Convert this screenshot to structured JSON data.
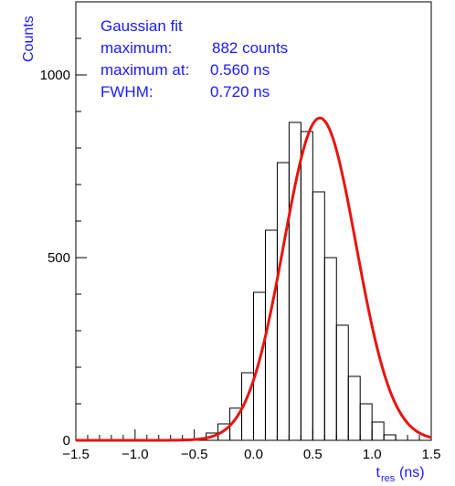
{
  "chart_data": {
    "type": "histogram",
    "xlabel_main": "t",
    "xlabel_sub": "res",
    "xlabel_unit": "(ns)",
    "ylabel": "Counts",
    "xlim": [
      -1.5,
      1.5
    ],
    "ylim": [
      0,
      1200
    ],
    "x_ticks": [
      -1.5,
      -1.0,
      -0.5,
      0.0,
      0.5,
      1.0,
      1.5
    ],
    "x_tick_labels": [
      "−1.5",
      "−1.0",
      "−0.5",
      "0.0",
      "0.5",
      "1.0",
      "1.5"
    ],
    "y_ticks": [
      0,
      500,
      1000
    ],
    "y_tick_labels": [
      "0",
      "500",
      "1000"
    ],
    "bin_width": 0.1,
    "bins": [
      {
        "x0": -1.5,
        "x1": -1.4,
        "count": 0
      },
      {
        "x0": -1.4,
        "x1": -1.3,
        "count": 0
      },
      {
        "x0": -1.3,
        "x1": -1.2,
        "count": 0
      },
      {
        "x0": -1.2,
        "x1": -1.1,
        "count": 0
      },
      {
        "x0": -1.1,
        "x1": -1.0,
        "count": 0
      },
      {
        "x0": -1.0,
        "x1": -0.9,
        "count": 0
      },
      {
        "x0": -0.9,
        "x1": -0.8,
        "count": 0
      },
      {
        "x0": -0.8,
        "x1": -0.7,
        "count": 0
      },
      {
        "x0": -0.7,
        "x1": -0.6,
        "count": 2
      },
      {
        "x0": -0.6,
        "x1": -0.5,
        "count": 3
      },
      {
        "x0": -0.5,
        "x1": -0.4,
        "count": 5
      },
      {
        "x0": -0.4,
        "x1": -0.3,
        "count": 20
      },
      {
        "x0": -0.3,
        "x1": -0.2,
        "count": 45
      },
      {
        "x0": -0.2,
        "x1": -0.1,
        "count": 88
      },
      {
        "x0": -0.1,
        "x1": 0.0,
        "count": 185
      },
      {
        "x0": 0.0,
        "x1": 0.1,
        "count": 405
      },
      {
        "x0": 0.1,
        "x1": 0.2,
        "count": 575
      },
      {
        "x0": 0.2,
        "x1": 0.3,
        "count": 760
      },
      {
        "x0": 0.3,
        "x1": 0.4,
        "count": 870
      },
      {
        "x0": 0.4,
        "x1": 0.5,
        "count": 845
      },
      {
        "x0": 0.5,
        "x1": 0.6,
        "count": 680
      },
      {
        "x0": 0.6,
        "x1": 0.7,
        "count": 500
      },
      {
        "x0": 0.7,
        "x1": 0.8,
        "count": 315
      },
      {
        "x0": 0.8,
        "x1": 0.9,
        "count": 175
      },
      {
        "x0": 0.9,
        "x1": 1.0,
        "count": 100
      },
      {
        "x0": 1.0,
        "x1": 1.1,
        "count": 50
      },
      {
        "x0": 1.1,
        "x1": 1.2,
        "count": 15
      }
    ],
    "fit": {
      "type": "gaussian",
      "amplitude": 882,
      "mean": 0.56,
      "fwhm": 0.72,
      "color": "#e8140f"
    },
    "annotation": {
      "title": "Gaussian fit",
      "line1_label": "maximum:",
      "line1_value": "882 counts",
      "line2_label": "maximum at:",
      "line2_value": "0.560 ns",
      "line3_label": "FWHM:",
      "line3_value": "0.720 ns"
    },
    "colors": {
      "histogram": "#000000",
      "fit": "#e8140f",
      "text": "#1a1aff"
    }
  }
}
